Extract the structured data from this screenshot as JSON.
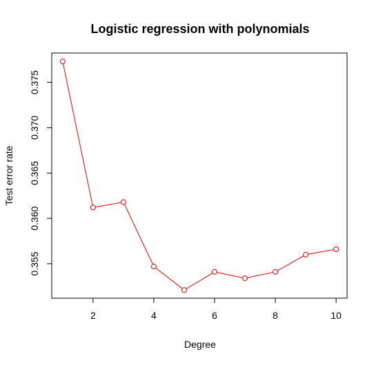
{
  "chart_data": {
    "type": "line",
    "title": "Logistic regression with polynomials",
    "xlabel": "Degree",
    "ylabel": "Test error rate",
    "x": [
      1,
      2,
      3,
      4,
      5,
      6,
      7,
      8,
      9,
      10
    ],
    "values": [
      0.3773,
      0.3612,
      0.3618,
      0.3547,
      0.3521,
      0.3541,
      0.3534,
      0.3541,
      0.356,
      0.3566
    ],
    "xticks": [
      2,
      4,
      6,
      8,
      10
    ],
    "xtick_labels": [
      "2",
      "4",
      "6",
      "8",
      "10"
    ],
    "yticks": [
      0.355,
      0.36,
      0.365,
      0.37,
      0.375
    ],
    "ytick_labels": [
      "0.355",
      "0.360",
      "0.365",
      "0.370",
      "0.375"
    ],
    "xlim": [
      0.64,
      10.36
    ],
    "ylim": [
      0.3512,
      0.37823
    ],
    "grid": false,
    "legend": "none",
    "color": "#e00000"
  }
}
